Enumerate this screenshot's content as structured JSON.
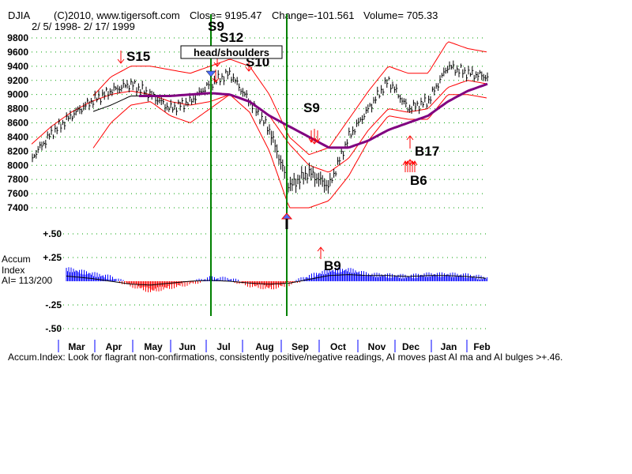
{
  "header": {
    "symbol": "DJIA",
    "copyright": "(C)2010, www.tigersoft.com",
    "close": "Close= 9195.47",
    "change": "Change=-101.561",
    "volume": "Volume= 705.33",
    "date_range": "2/ 5/ 1998- 2/ 17/ 1999"
  },
  "accum": {
    "title_line1": "Accum",
    "title_line2": "Index",
    "ai_label": "AI= 113/200"
  },
  "footer_note": "Accum.Index: Look for flagrant non-confirmations, consistently positive/negative readings, AI moves past AI ma and AI bulges >+.46.",
  "colors": {
    "price_bars": "#000000",
    "bands": "#ff0000",
    "long_ma": "#800080",
    "mid_ma": "#000000",
    "vertical_lines": "#008000",
    "accum_positive": "#0000ff",
    "accum_negative": "#ff0000",
    "signal_arrows": "#ff0000",
    "month_ticks": "#0000ff"
  },
  "chart_data": [
    {
      "type": "line",
      "subtype": "ohlc-bars-with-bands",
      "title": "DJIA",
      "ylim": [
        7300,
        9900
      ],
      "y_ticks": [
        9800,
        9600,
        9400,
        9200,
        9000,
        8800,
        8600,
        8400,
        8200,
        8000,
        7800,
        7600,
        7400
      ],
      "y_tick_labels": [
        "9800",
        "9600",
        "9400",
        "9200",
        "9000",
        "8800",
        "8600",
        "8400",
        "8200",
        "8000",
        "7800",
        "7600",
        "7400"
      ],
      "grid": true,
      "months": [
        "Mar",
        "Apr",
        "May",
        "Jun",
        "Jul",
        "Aug",
        "Sep",
        "Oct",
        "Nov",
        "Dec",
        "Jan",
        "Feb"
      ],
      "x": [
        "Feb",
        "Mar",
        "Mar",
        "Apr",
        "Apr",
        "May",
        "May",
        "Jun",
        "Jun",
        "Jul",
        "Jul",
        "Aug",
        "Aug",
        "Sep",
        "Sep",
        "Oct",
        "Oct",
        "Nov",
        "Nov",
        "Dec",
        "Dec",
        "Jan",
        "Jan",
        "Feb"
      ],
      "series": [
        {
          "name": "",
          "values": [
            8100,
            8450,
            8700,
            8900,
            9050,
            9150,
            9000,
            8800,
            8900,
            9150,
            9300,
            8900,
            8500,
            7700,
            7900,
            7700,
            8400,
            8800,
            9200,
            8800,
            8900,
            9400,
            9300,
            9250
          ]
        },
        {
          "name": "",
          "values": [
            null,
            null,
            null,
            8950,
            9250,
            9400,
            9400,
            9350,
            9300,
            9400,
            9500,
            9400,
            9000,
            8400,
            8150,
            8250,
            8650,
            9050,
            9400,
            9300,
            9300,
            9750,
            9650,
            9600
          ]
        },
        {
          "name": "",
          "values": [
            null,
            null,
            null,
            8200,
            8600,
            8850,
            8900,
            8700,
            8600,
            8800,
            9000,
            8750,
            8200,
            7400,
            7400,
            7500,
            7850,
            8350,
            8700,
            8650,
            8650,
            9000,
            9000,
            8950
          ]
        },
        {
          "name": "",
          "values": [
            null,
            null,
            null,
            8750,
            8850,
            8980,
            8980,
            8980,
            9000,
            9020,
            9000,
            8900,
            8700,
            8550,
            8400,
            8250,
            8250,
            8350,
            8500,
            8600,
            8700,
            8900,
            9050,
            9150
          ]
        },
        {
          "name": "",
          "values": [
            8300,
            8550,
            8750,
            8900,
            9000,
            9050,
            9000,
            8900,
            8850,
            8900,
            9000,
            8900,
            8700,
            8300,
            8000,
            7900,
            8100,
            8500,
            8800,
            8750,
            8800,
            9100,
            9200,
            9150
          ]
        }
      ],
      "signals": [
        {
          "label": "S15",
          "month": "Apr",
          "price": 9500,
          "dir": "sell"
        },
        {
          "label": "S9",
          "month": "Jul",
          "price": 9500,
          "dir": "sell"
        },
        {
          "label": "S12",
          "month": "Jul",
          "price": 9400,
          "dir": "sell"
        },
        {
          "label": "S10",
          "month": "Jul",
          "price": 9360,
          "dir": "sell"
        },
        {
          "label": "S9",
          "month": "Sep",
          "price": 8300,
          "dir": "sell"
        },
        {
          "label": "B17",
          "month": "Dec",
          "price": 8300,
          "dir": "buy"
        },
        {
          "label": "B6",
          "month": "Dec",
          "price": 8000,
          "dir": "buy"
        }
      ],
      "annotations": [
        "head/shoulders"
      ]
    },
    {
      "type": "bar",
      "title": "Accum Index",
      "ylim": [
        -0.5,
        0.5
      ],
      "y_ticks": [
        0.5,
        0.25,
        -0.25,
        -0.5
      ],
      "y_tick_labels": [
        "+.50",
        "+.25",
        "-.25",
        "-.50"
      ],
      "grid": true,
      "signals": [
        {
          "label": "B9",
          "month": "Sep",
          "value": 0.1,
          "dir": "buy"
        }
      ],
      "x": [
        "Feb",
        "Mar",
        "Mar",
        "Apr",
        "Apr",
        "May",
        "May",
        "Jun",
        "Jun",
        "Jul",
        "Jul",
        "Aug",
        "Aug",
        "Sep",
        "Sep",
        "Oct",
        "Oct",
        "Nov",
        "Nov",
        "Dec",
        "Dec",
        "Jan",
        "Jan",
        "Feb"
      ],
      "series": [
        {
          "name": "",
          "values": [
            0.17,
            0.15,
            0.12,
            0.08,
            0.04,
            -0.04,
            -0.1,
            -0.06,
            -0.02,
            0.03,
            0.02,
            -0.04,
            -0.07,
            -0.03,
            0.05,
            0.11,
            0.12,
            0.07,
            0.06,
            0.05,
            0.07,
            0.07,
            0.06,
            0.03
          ]
        },
        {
          "name": "",
          "values": [
            0.1,
            0.07,
            0.05,
            0.03,
            0.0,
            -0.03,
            -0.04,
            -0.02,
            0.0,
            0.01,
            0.0,
            -0.02,
            -0.03,
            -0.02,
            0.02,
            0.06,
            0.07,
            0.06,
            0.06,
            0.05,
            0.06,
            0.06,
            0.05,
            0.03
          ]
        }
      ]
    }
  ]
}
